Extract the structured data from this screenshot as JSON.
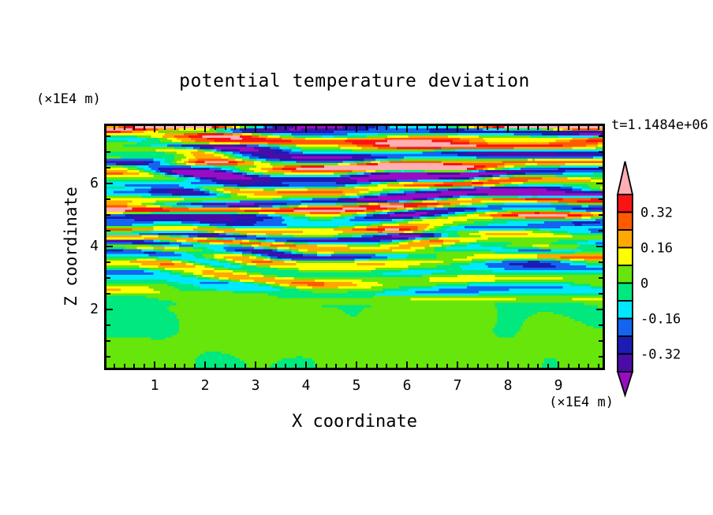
{
  "title": "potential temperature deviation",
  "annotations": {
    "time_label": "t=1.1484e+06",
    "y_axis_unit": "(×1E4 m)",
    "x_axis_unit": "(×1E4 m)"
  },
  "axes": {
    "x": {
      "label": "X coordinate",
      "tick_labels": [
        "1",
        "2",
        "3",
        "4",
        "5",
        "6",
        "7",
        "8",
        "9"
      ],
      "minor_ticks_per_major_interval": 4,
      "range": [
        0,
        9.92
      ]
    },
    "y": {
      "label": "Z coordinate",
      "tick_labels": [
        "2",
        "4",
        "6"
      ],
      "minor_tick_step": 0.5,
      "range": [
        0.07,
        7.92
      ]
    }
  },
  "colorbar": {
    "labels": [
      "0.32",
      "0.16",
      "0",
      "-0.16",
      "-0.32"
    ],
    "labeled_levels": [
      0.32,
      0.16,
      0,
      -0.16,
      -0.32
    ]
  },
  "chart_data": {
    "type": "filled_contour",
    "title": "potential temperature deviation",
    "xlabel": "X coordinate",
    "ylabel": "Z coordinate",
    "x_unit": "(×1E4 m)",
    "z_unit": "(×1E4 m)",
    "time_annotation": "t=1.1484e+06",
    "x_range": [
      0,
      9.92
    ],
    "z_range": [
      0.07,
      7.92
    ],
    "contour_interval": 0.08,
    "levels": [
      -0.4,
      -0.32,
      -0.24,
      -0.16,
      -0.08,
      0,
      0.08,
      0.16,
      0.24,
      0.32,
      0.4
    ],
    "band_colors": [
      "#4A0CA8",
      "#1C1CB4",
      "#1464F0",
      "#00E8FF",
      "#00E87E",
      "#66E60A",
      "#FFFF00",
      "#FFA800",
      "#FF5A00",
      "#F81414"
    ],
    "underflow_color": "#990CC4",
    "overflow_color": "#FFAEB4",
    "frame_color": "#000000",
    "background_color": "#FFFFFF",
    "field_structure": {
      "description": "Stratified turbulence: thin horizontally-elongated alternating warm/cold layers (lens-like streaks reaching |deviation|>0.4, shown pink/purple) above z≈2.2×1E4 m, intensifying toward the domain top where a dark negative band with pink positive sheets hugs the upper boundary; below z≈2 the field is quiescent with |deviation|<0.08 forming large smooth green blobs.",
      "quiescent_below_z": 2.2,
      "quiescent_amplitude": 0.07,
      "turbulent_typical_amplitude": 0.3,
      "turbulent_peak_amplitude": 0.6,
      "approx_layer_count": 16
    }
  }
}
